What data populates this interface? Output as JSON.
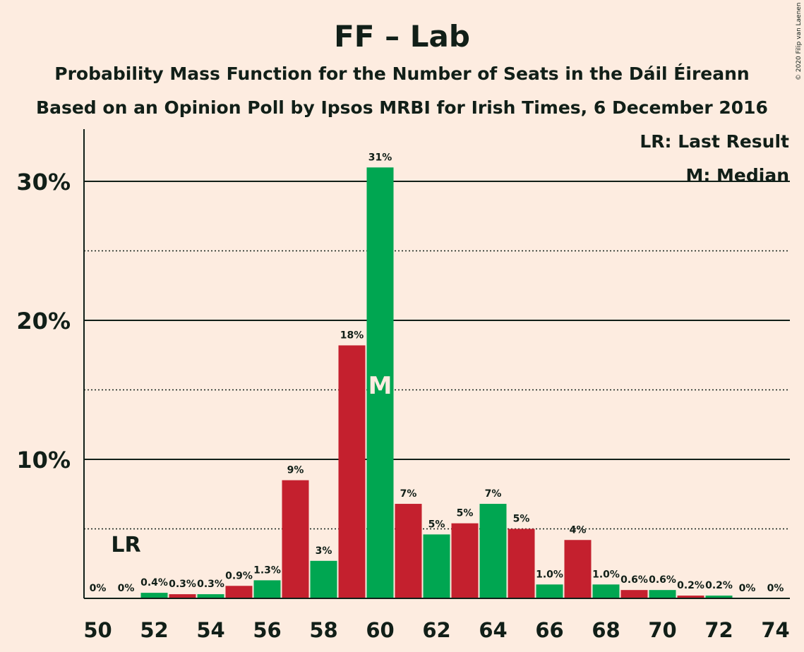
{
  "colors": {
    "background": "#fdece0",
    "green": "#00a651",
    "red": "#c4202e",
    "text": "#111f18"
  },
  "chart_data": {
    "type": "bar",
    "title": "FF – Lab",
    "subtitle": "Probability Mass Function for the Number of Seats in the Dáil Éireann",
    "subtitle2": "Based on an Opinion Poll by Ipsos MRBI for Irish Times, 6 December 2016",
    "copyright": "© 2020 Filip van Laenen",
    "legend_position": "top-right",
    "legend": [
      "LR: Last Result",
      "M: Median"
    ],
    "xlabel": "",
    "ylabel": "",
    "ylim": [
      0,
      33.5
    ],
    "yticks": [
      {
        "value": 10,
        "label": "10%"
      },
      {
        "value": 20,
        "label": "20%"
      },
      {
        "value": 30,
        "label": "30%"
      }
    ],
    "grid_solid": [
      10,
      20,
      30
    ],
    "grid_dotted": [
      5,
      15,
      25
    ],
    "xticks": [
      "50",
      "52",
      "54",
      "56",
      "58",
      "60",
      "62",
      "64",
      "66",
      "68",
      "70",
      "72",
      "74"
    ],
    "categories": [
      50,
      51,
      52,
      53,
      54,
      55,
      56,
      57,
      58,
      59,
      60,
      61,
      62,
      63,
      64,
      65,
      66,
      67,
      68,
      69,
      70,
      71,
      72,
      73,
      74
    ],
    "values": [
      0,
      0,
      0.4,
      0.3,
      0.3,
      0.9,
      1.3,
      8.5,
      2.7,
      18.2,
      31.0,
      6.8,
      4.6,
      5.4,
      6.8,
      5.0,
      1.0,
      4.2,
      1.0,
      0.6,
      0.6,
      0.2,
      0.2,
      0,
      0
    ],
    "labels": [
      "0%",
      "0%",
      "0.4%",
      "0.3%",
      "0.3%",
      "0.9%",
      "1.3%",
      "9%",
      "3%",
      "18%",
      "31%",
      "7%",
      "5%",
      "5%",
      "7%",
      "5%",
      "1.0%",
      "4%",
      "1.0%",
      "0.6%",
      "0.6%",
      "0.2%",
      "0.2%",
      "0%",
      "0%"
    ],
    "last_result_seat": 51,
    "last_result_label": "LR",
    "median_seat": 60,
    "median_label": "M"
  }
}
